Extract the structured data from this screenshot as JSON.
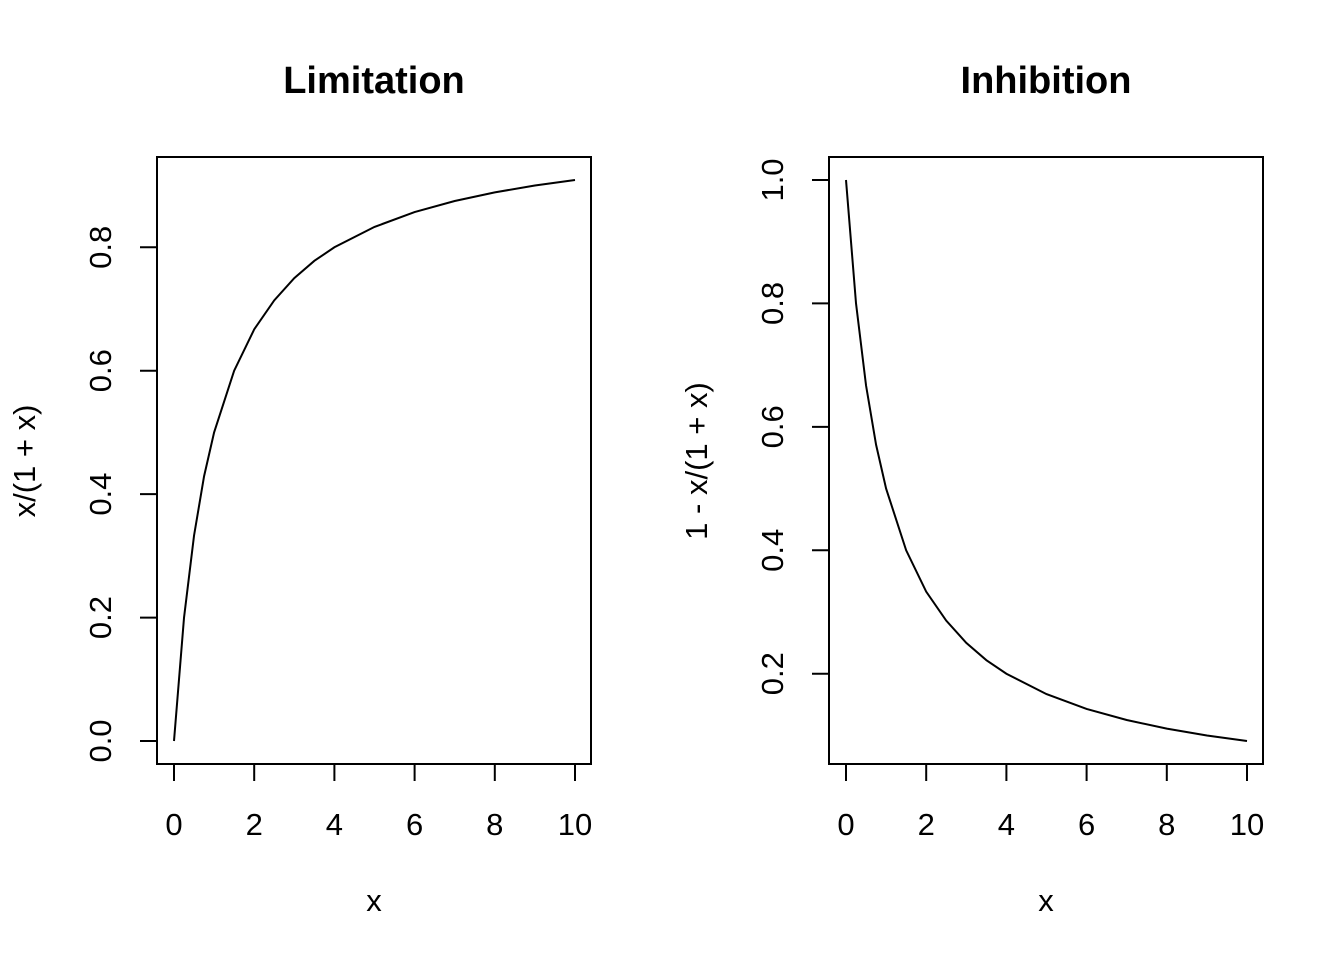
{
  "chart_data": [
    {
      "type": "line",
      "title": "Limitation",
      "xlabel": "x",
      "ylabel": "x/(1 + x)",
      "xlim": [
        0,
        10
      ],
      "ylim": [
        0,
        0.909
      ],
      "xticks": [
        0,
        2,
        4,
        6,
        8,
        10
      ],
      "yticks": [
        0.0,
        0.2,
        0.4,
        0.6,
        0.8
      ],
      "xtick_labels": [
        "0",
        "2",
        "4",
        "6",
        "8",
        "10"
      ],
      "ytick_labels": [
        "0.0",
        "0.2",
        "0.4",
        "0.6",
        "0.8"
      ],
      "grid": false,
      "series": [
        {
          "x": [
            0,
            0.25,
            0.5,
            0.75,
            1,
            1.5,
            2,
            2.5,
            3,
            3.5,
            4,
            5,
            6,
            7,
            8,
            9,
            10
          ],
          "y": [
            0,
            0.2,
            0.333,
            0.429,
            0.5,
            0.6,
            0.667,
            0.714,
            0.75,
            0.778,
            0.8,
            0.833,
            0.857,
            0.875,
            0.889,
            0.9,
            0.909
          ]
        }
      ]
    },
    {
      "type": "line",
      "title": "Inhibition",
      "xlabel": "x",
      "ylabel": "1 - x/(1 + x)",
      "xlim": [
        0,
        10
      ],
      "ylim": [
        0.091,
        1.0
      ],
      "xticks": [
        0,
        2,
        4,
        6,
        8,
        10
      ],
      "yticks": [
        0.2,
        0.4,
        0.6,
        0.8,
        1.0
      ],
      "xtick_labels": [
        "0",
        "2",
        "4",
        "6",
        "8",
        "10"
      ],
      "ytick_labels": [
        "0.2",
        "0.4",
        "0.6",
        "0.8",
        "1.0"
      ],
      "grid": false,
      "series": [
        {
          "x": [
            0,
            0.25,
            0.5,
            0.75,
            1,
            1.5,
            2,
            2.5,
            3,
            3.5,
            4,
            5,
            6,
            7,
            8,
            9,
            10
          ],
          "y": [
            1.0,
            0.8,
            0.667,
            0.571,
            0.5,
            0.4,
            0.333,
            0.286,
            0.25,
            0.222,
            0.2,
            0.167,
            0.143,
            0.125,
            0.111,
            0.1,
            0.091
          ]
        }
      ]
    }
  ]
}
